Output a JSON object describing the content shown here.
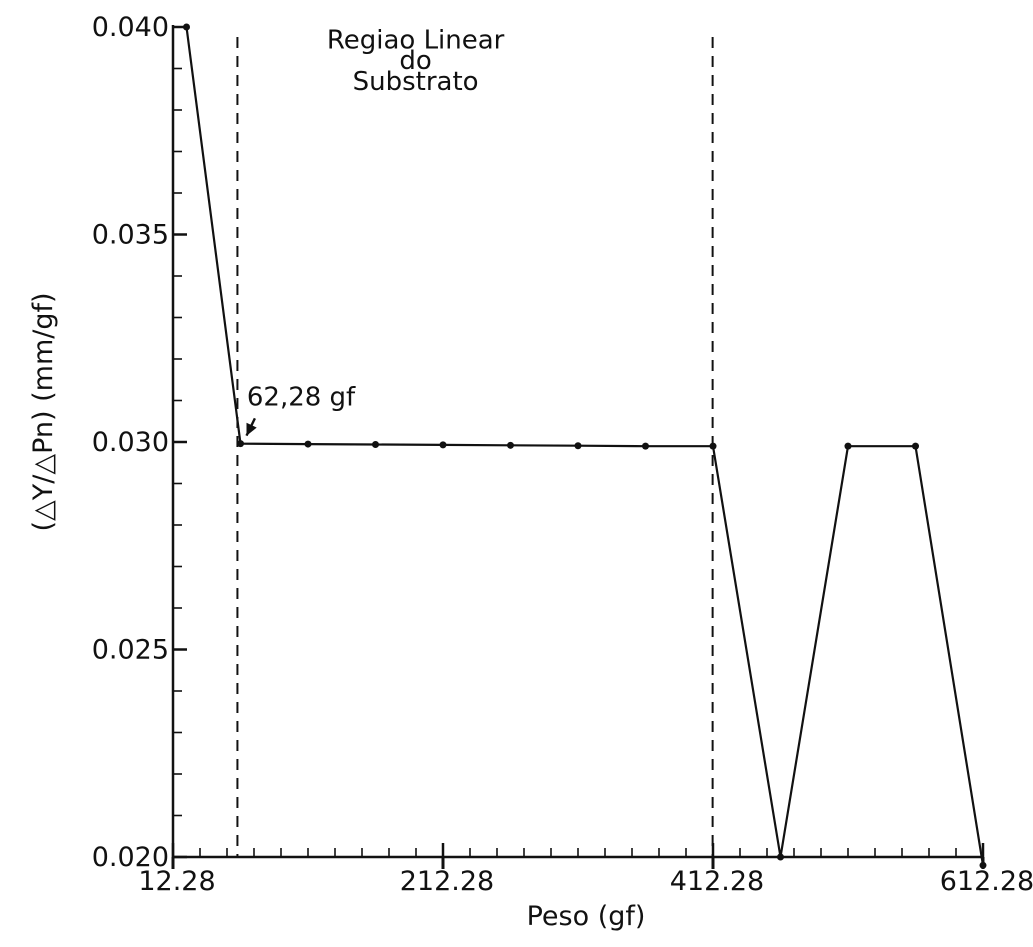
{
  "chart_data": {
    "type": "line",
    "xlabel": "Peso (gf)",
    "ylabel": "(△Y/△Pn) (mm/gf)",
    "xlim": [
      12.28,
      612.28
    ],
    "ylim": [
      0.02,
      0.04
    ],
    "x_ticks": [
      12.28,
      212.28,
      412.28,
      612.28
    ],
    "x_tick_labels": [
      "12.28",
      "212.28",
      "412.28",
      "612.28"
    ],
    "y_ticks": [
      0.02,
      0.025,
      0.03,
      0.035,
      0.04
    ],
    "y_tick_labels": [
      "0.020",
      "0.025",
      "0.030",
      "0.035",
      "0.040"
    ],
    "x": [
      22.28,
      62.28,
      112.28,
      162.28,
      212.28,
      262.28,
      312.28,
      362.28,
      412.28,
      462.28,
      512.28,
      562.28,
      612.28
    ],
    "values": [
      0.04,
      0.02996,
      0.02995,
      0.02994,
      0.02993,
      0.02992,
      0.02991,
      0.0299,
      0.0299,
      0.02,
      0.0299,
      0.0299,
      0.0198
    ],
    "vertical_lines": [
      {
        "x": 60
      },
      {
        "x": 412
      }
    ],
    "annotations": [
      {
        "text": "Regiao Linear",
        "x": 192,
        "y": 0.0397
      },
      {
        "text": "do",
        "x": 192,
        "y": 0.0392
      },
      {
        "text": "Substrato",
        "x": 192,
        "y": 0.0387
      },
      {
        "text": "62,28 gf",
        "x": 67,
        "y": 0.0311,
        "arrow_to": [
          62.28,
          0.02996
        ]
      }
    ],
    "grid": false,
    "line_color": "#111111"
  }
}
